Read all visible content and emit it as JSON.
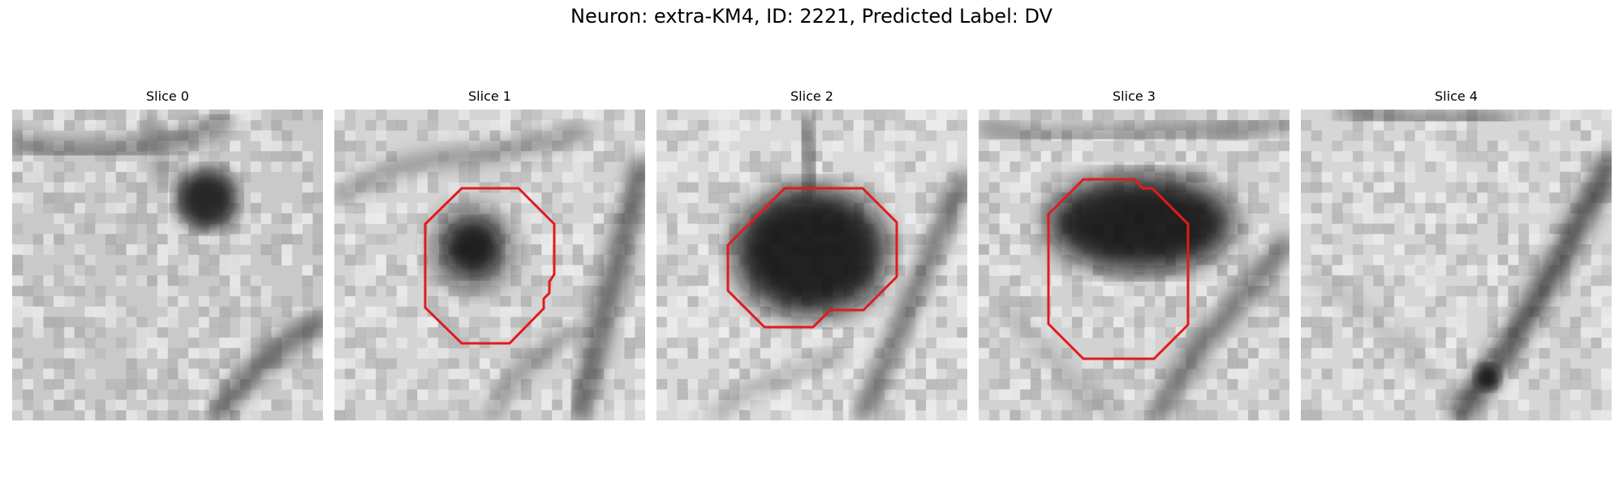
{
  "figure": {
    "title": "Neuron: extra-KM4, ID: 2221, Predicted Label: DV",
    "contour_color": "#e31a1c",
    "panels": [
      {
        "title": "Slice 0"
      },
      {
        "title": "Slice 1"
      },
      {
        "title": "Slice 2"
      },
      {
        "title": "Slice 3"
      },
      {
        "title": "Slice 4"
      }
    ]
  }
}
